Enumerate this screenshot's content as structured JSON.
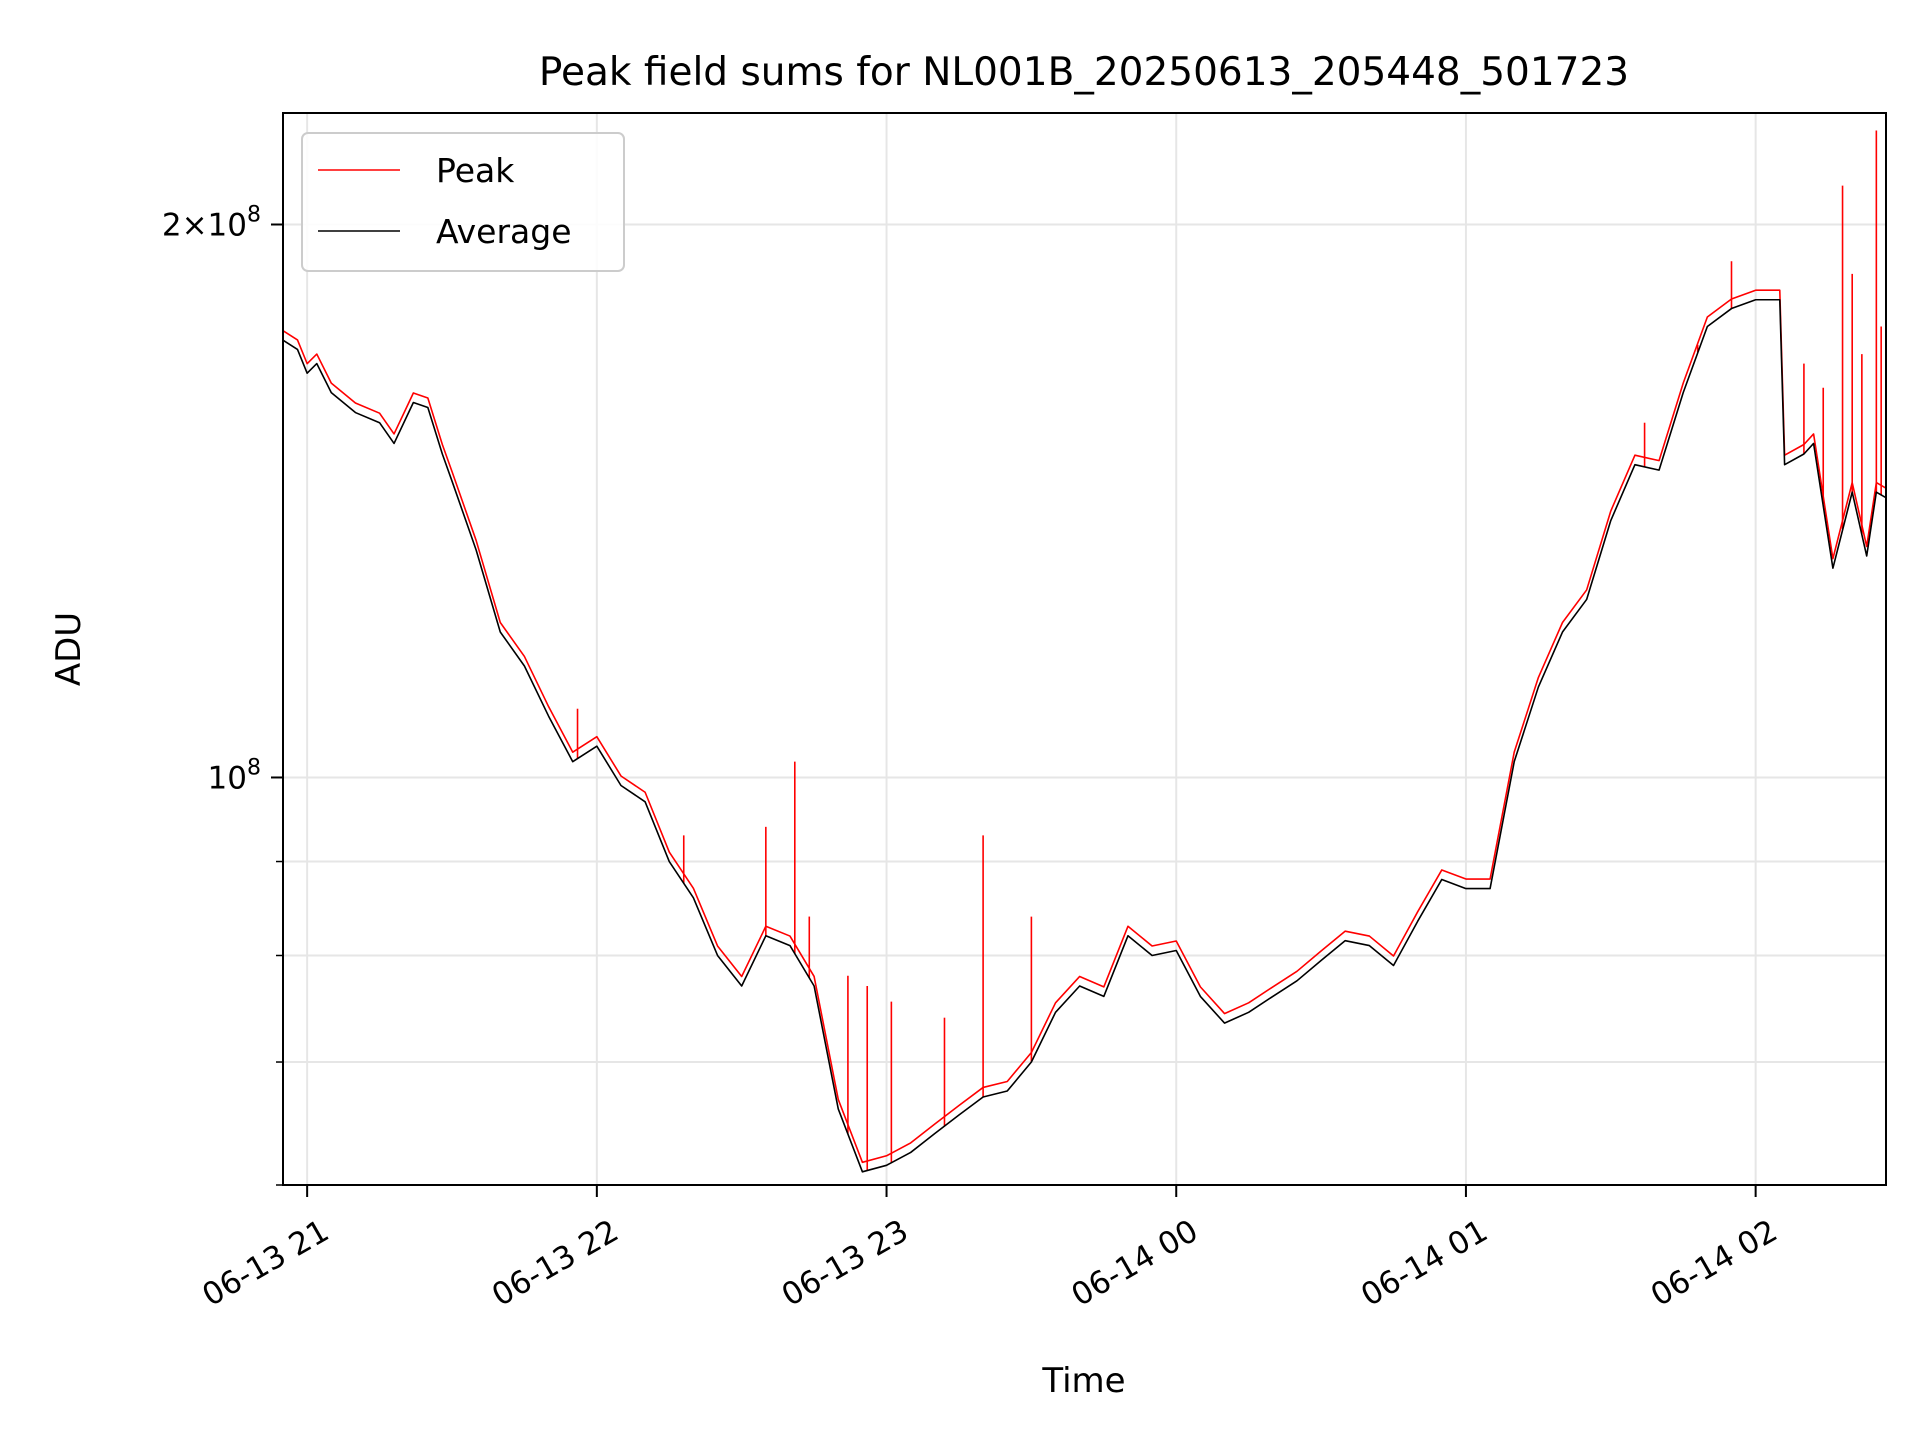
{
  "chart_data": {
    "type": "line",
    "title": "Peak field sums for NL001B_20250613_205448_501723",
    "xlabel": "Time",
    "ylabel": "ADU",
    "y_scale": "log",
    "ylim": [
      60000000,
      230000000
    ],
    "xlim": [
      "06-13 20:55",
      "06-14 02:27"
    ],
    "grid": true,
    "legend": "top-left",
    "x_ticks": [
      {
        "t": "06-13 21:00",
        "label": "06-13 21"
      },
      {
        "t": "06-13 22:00",
        "label": "06-13 22"
      },
      {
        "t": "06-13 23:00",
        "label": "06-13 23"
      },
      {
        "t": "06-14 00:00",
        "label": "06-14 00"
      },
      {
        "t": "06-14 01:00",
        "label": "06-14 01"
      },
      {
        "t": "06-14 02:00",
        "label": "06-14 02"
      }
    ],
    "y_major_ticks": [
      {
        "v": 100000000,
        "base": "10",
        "exp": "8",
        "mult": ""
      },
      {
        "v": 200000000,
        "base": "10",
        "exp": "8",
        "mult": "2×"
      }
    ],
    "y_minor_ticks": [
      60000000,
      70000000,
      80000000,
      90000000
    ],
    "series": [
      {
        "name": "Average",
        "color": "#000000",
        "points": [
          [
            "06-13 20:55",
            173000000
          ],
          [
            "06-13 20:58",
            171000000
          ],
          [
            "06-13 21:00",
            166000000
          ],
          [
            "06-13 21:02",
            168000000
          ],
          [
            "06-13 21:05",
            162000000
          ],
          [
            "06-13 21:10",
            158000000
          ],
          [
            "06-13 21:15",
            156000000
          ],
          [
            "06-13 21:18",
            152000000
          ],
          [
            "06-13 21:22",
            160000000
          ],
          [
            "06-13 21:25",
            159000000
          ],
          [
            "06-13 21:28",
            150000000
          ],
          [
            "06-13 21:30",
            145000000
          ],
          [
            "06-13 21:35",
            133000000
          ],
          [
            "06-13 21:40",
            120000000
          ],
          [
            "06-13 21:45",
            115000000
          ],
          [
            "06-13 21:50",
            108000000
          ],
          [
            "06-13 21:55",
            102000000
          ],
          [
            "06-13 22:00",
            104000000
          ],
          [
            "06-13 22:05",
            99000000
          ],
          [
            "06-13 22:10",
            97000000
          ],
          [
            "06-13 22:15",
            90000000
          ],
          [
            "06-13 22:20",
            86000000
          ],
          [
            "06-13 22:25",
            80000000
          ],
          [
            "06-13 22:30",
            77000000
          ],
          [
            "06-13 22:35",
            82000000
          ],
          [
            "06-13 22:40",
            81000000
          ],
          [
            "06-13 22:45",
            77000000
          ],
          [
            "06-13 22:50",
            66000000
          ],
          [
            "06-13 22:55",
            61000000
          ],
          [
            "06-13 23:00",
            61500000
          ],
          [
            "06-13 23:05",
            62500000
          ],
          [
            "06-13 23:10",
            64000000
          ],
          [
            "06-13 23:15",
            65500000
          ],
          [
            "06-13 23:20",
            67000000
          ],
          [
            "06-13 23:25",
            67500000
          ],
          [
            "06-13 23:30",
            70000000
          ],
          [
            "06-13 23:35",
            74500000
          ],
          [
            "06-13 23:40",
            77000000
          ],
          [
            "06-13 23:45",
            76000000
          ],
          [
            "06-13 23:50",
            82000000
          ],
          [
            "06-13 23:55",
            80000000
          ],
          [
            "06-14 00:00",
            80500000
          ],
          [
            "06-14 00:05",
            76000000
          ],
          [
            "06-14 00:10",
            73500000
          ],
          [
            "06-14 00:15",
            74500000
          ],
          [
            "06-14 00:20",
            76000000
          ],
          [
            "06-14 00:25",
            77500000
          ],
          [
            "06-14 00:30",
            79500000
          ],
          [
            "06-14 00:35",
            81500000
          ],
          [
            "06-14 00:40",
            81000000
          ],
          [
            "06-14 00:45",
            79000000
          ],
          [
            "06-14 00:50",
            83500000
          ],
          [
            "06-14 00:55",
            88000000
          ],
          [
            "06-14 01:00",
            87000000
          ],
          [
            "06-14 01:05",
            87000000
          ],
          [
            "06-14 01:10",
            102000000
          ],
          [
            "06-14 01:15",
            112000000
          ],
          [
            "06-14 01:20",
            120000000
          ],
          [
            "06-14 01:25",
            125000000
          ],
          [
            "06-14 01:30",
            138000000
          ],
          [
            "06-14 01:35",
            148000000
          ],
          [
            "06-14 01:40",
            147000000
          ],
          [
            "06-14 01:45",
            162000000
          ],
          [
            "06-14 01:50",
            176000000
          ],
          [
            "06-14 01:55",
            180000000
          ],
          [
            "06-14 02:00",
            182000000
          ],
          [
            "06-14 02:05",
            182000000
          ],
          [
            "06-14 02:06",
            148000000
          ],
          [
            "06-14 02:10",
            150000000
          ],
          [
            "06-14 02:12",
            152000000
          ],
          [
            "06-14 02:16",
            130000000
          ],
          [
            "06-14 02:20",
            143000000
          ],
          [
            "06-14 02:23",
            132000000
          ],
          [
            "06-14 02:25",
            143000000
          ],
          [
            "06-14 02:27",
            142000000
          ]
        ]
      },
      {
        "name": "Peak",
        "color": "#ff0000",
        "spikes": [
          [
            "06-13 21:56",
            109000000
          ],
          [
            "06-13 22:00",
            104000000
          ],
          [
            "06-13 22:18",
            93000000
          ],
          [
            "06-13 22:35",
            94000000
          ],
          [
            "06-13 22:41",
            102000000
          ],
          [
            "06-13 22:44",
            84000000
          ],
          [
            "06-13 22:52",
            78000000
          ],
          [
            "06-13 22:56",
            77000000
          ],
          [
            "06-13 23:01",
            75500000
          ],
          [
            "06-13 23:12",
            74000000
          ],
          [
            "06-13 23:20",
            93000000
          ],
          [
            "06-13 23:30",
            84000000
          ],
          [
            "06-14 01:37",
            156000000
          ],
          [
            "06-14 01:48",
            172000000
          ],
          [
            "06-14 01:55",
            191000000
          ],
          [
            "06-14 02:10",
            168000000
          ],
          [
            "06-14 02:14",
            163000000
          ],
          [
            "06-14 02:18",
            210000000
          ],
          [
            "06-14 02:20",
            188000000
          ],
          [
            "06-14 02:22",
            170000000
          ],
          [
            "06-14 02:25",
            225000000
          ],
          [
            "06-14 02:26",
            176000000
          ],
          [
            "06-14 02:27",
            164000000
          ]
        ]
      }
    ]
  }
}
